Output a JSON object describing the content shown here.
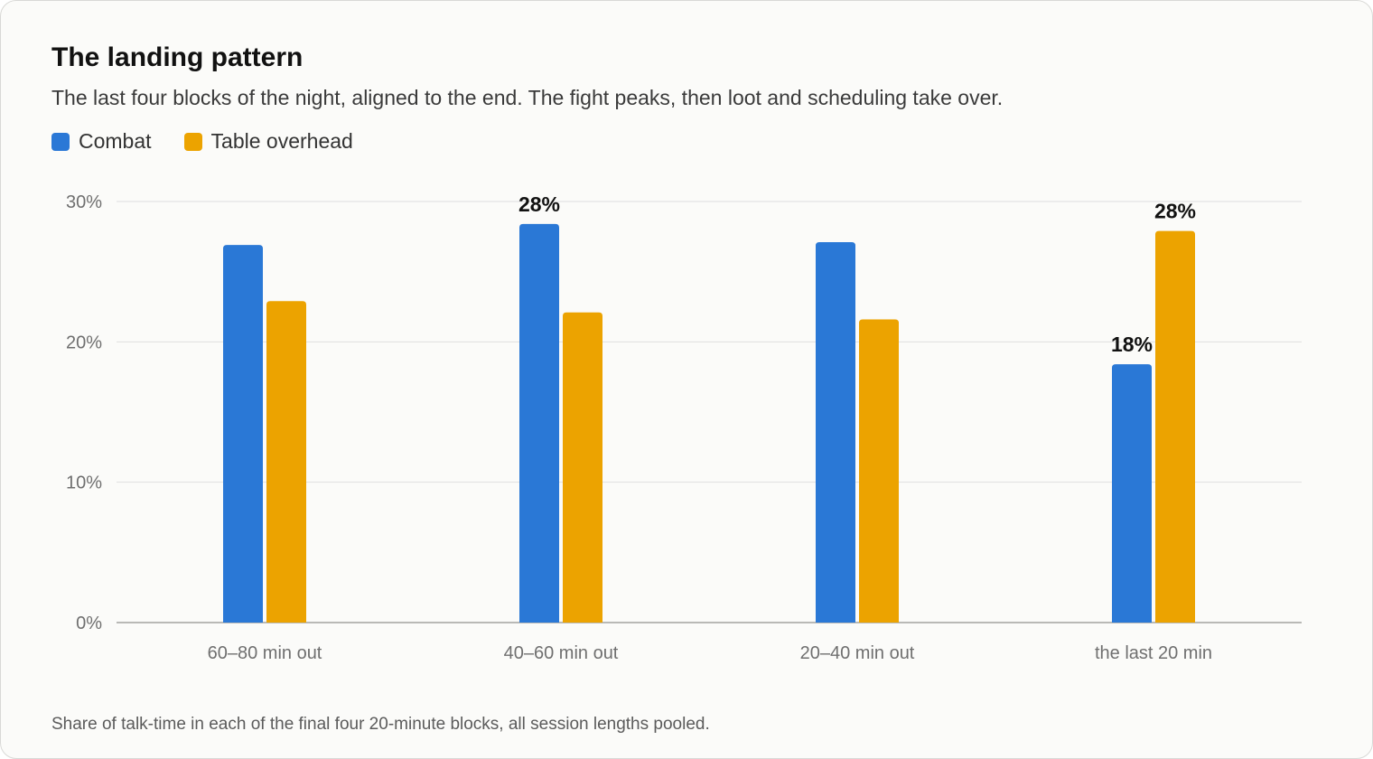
{
  "title": "The landing pattern",
  "subtitle": "The last four blocks of the night, aligned to the end. The fight peaks, then loot and scheduling take over.",
  "footnote": "Share of talk-time in each of the final four 20-minute blocks, all session lengths pooled.",
  "legend": [
    {
      "name": "Combat",
      "color": "#2a78d6"
    },
    {
      "name": "Table overhead",
      "color": "#eca300"
    }
  ],
  "chart_data": {
    "type": "bar",
    "categories": [
      "60–80 min out",
      "40–60 min out",
      "20–40 min out",
      "the last 20 min"
    ],
    "series": [
      {
        "name": "Combat",
        "color": "#2a78d6",
        "values": [
          26.9,
          28.4,
          27.1,
          18.4
        ]
      },
      {
        "name": "Table overhead",
        "color": "#eca300",
        "values": [
          22.9,
          22.1,
          21.6,
          27.9
        ]
      }
    ],
    "ylim": [
      0,
      30
    ],
    "yticks": [
      0,
      10,
      20,
      30
    ],
    "ytick_labels": [
      "0%",
      "10%",
      "20%",
      "30%"
    ],
    "grid": true,
    "legend_position": "top-left",
    "data_labels": [
      {
        "series": 0,
        "index": 1,
        "text": "28%"
      },
      {
        "series": 0,
        "index": 3,
        "text": "18%"
      },
      {
        "series": 1,
        "index": 3,
        "text": "28%"
      }
    ]
  }
}
